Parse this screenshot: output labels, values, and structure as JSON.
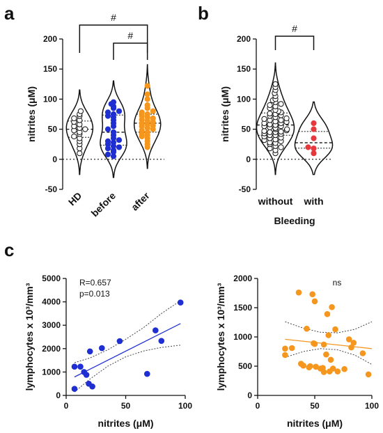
{
  "panels": {
    "a": "a",
    "b": "b",
    "c": "c"
  },
  "colors": {
    "blue": "#1f2fd1",
    "orange": "#f5961e",
    "red": "#e8383d",
    "black": "#111111",
    "white": "#ffffff"
  },
  "chart_data": [
    {
      "id": "a",
      "type": "violin",
      "ylabel": "nitrites (μM)",
      "ylim": [
        -50,
        200
      ],
      "yticks": [
        -50,
        0,
        50,
        100,
        150,
        200
      ],
      "zero_line": "dotted",
      "categories": [
        "HD",
        "before",
        "after"
      ],
      "series": [
        {
          "name": "HD",
          "fill": "open",
          "color": "#111111",
          "values": [
            10,
            18,
            25,
            30,
            35,
            38,
            42,
            45,
            48,
            50,
            52,
            55,
            58,
            62,
            65,
            68,
            72,
            75,
            80
          ]
        },
        {
          "name": "before",
          "fill": "filled",
          "color": "#1f2fd1",
          "values": [
            5,
            8,
            12,
            15,
            18,
            20,
            22,
            25,
            28,
            30,
            32,
            35,
            40,
            45,
            50,
            55,
            60,
            65,
            70,
            72,
            75,
            78,
            80,
            85,
            88,
            92,
            95
          ]
        },
        {
          "name": "after",
          "fill": "filled",
          "color": "#f5961e",
          "values": [
            20,
            25,
            30,
            35,
            38,
            40,
            42,
            45,
            48,
            50,
            52,
            55,
            56,
            58,
            60,
            62,
            64,
            66,
            68,
            70,
            72,
            75,
            78,
            80,
            85,
            90,
            100,
            108,
            122
          ]
        }
      ],
      "comparisons": [
        {
          "from": "HD",
          "to": "after",
          "label": "#",
          "level": 1
        },
        {
          "from": "before",
          "to": "after",
          "label": "#",
          "level": 2
        }
      ]
    },
    {
      "id": "b",
      "type": "violin",
      "ylabel": "nitrites (μM)",
      "xlabel": "Bleeding",
      "ylim": [
        -50,
        200
      ],
      "yticks": [
        -50,
        0,
        50,
        100,
        150,
        200
      ],
      "zero_line": "dotted",
      "categories": [
        "without",
        "with"
      ],
      "series": [
        {
          "name": "without",
          "fill": "open",
          "color": "#111111",
          "values": [
            10,
            15,
            18,
            20,
            22,
            25,
            27,
            28,
            30,
            32,
            33,
            35,
            36,
            38,
            40,
            40,
            42,
            43,
            45,
            45,
            46,
            47,
            48,
            50,
            50,
            52,
            53,
            55,
            55,
            57,
            58,
            60,
            60,
            62,
            63,
            65,
            65,
            67,
            68,
            70,
            72,
            73,
            75,
            76,
            78,
            80,
            82,
            85,
            88,
            90,
            92,
            95,
            98,
            100,
            105,
            110,
            115,
            120,
            125
          ]
        },
        {
          "name": "with",
          "fill": "filled",
          "color": "#e8383d",
          "values": [
            10,
            18,
            20,
            35,
            50,
            60
          ]
        }
      ],
      "comparisons": [
        {
          "from": "without",
          "to": "with",
          "label": "#",
          "level": 1
        }
      ]
    },
    {
      "id": "c-left",
      "type": "scatter",
      "xlabel": "nitrites (μM)",
      "ylabel": "lymphocytes x 10³/mm³",
      "xlim": [
        0,
        100
      ],
      "ylim": [
        0,
        5000
      ],
      "xticks": [
        0,
        50,
        100
      ],
      "yticks": [
        0,
        1000,
        2000,
        3000,
        4000,
        5000
      ],
      "color": "#1f2fd1",
      "annotations": [
        "R=0.657",
        "p=0.013"
      ],
      "points": [
        [
          7,
          1230
        ],
        [
          7,
          280
        ],
        [
          12,
          1230
        ],
        [
          15,
          1000
        ],
        [
          17,
          880
        ],
        [
          19,
          500
        ],
        [
          20,
          1880
        ],
        [
          22,
          380
        ],
        [
          30,
          2020
        ],
        [
          45,
          2320
        ],
        [
          68,
          920
        ],
        [
          75,
          2780
        ],
        [
          80,
          2330
        ],
        [
          96,
          3970
        ]
      ],
      "fit": {
        "x": [
          7,
          96
        ],
        "y": [
          790,
          3070
        ]
      },
      "ci_upper": {
        "x": [
          7,
          20,
          35,
          50,
          65,
          80,
          96
        ],
        "y": [
          1400,
          1600,
          1950,
          2400,
          2900,
          3500,
          4050
        ]
      },
      "ci_lower": {
        "x": [
          7,
          20,
          35,
          50,
          65,
          80,
          96
        ],
        "y": [
          150,
          700,
          1250,
          1650,
          1900,
          2050,
          2150
        ]
      }
    },
    {
      "id": "c-right",
      "type": "scatter",
      "xlabel": "nitrites (μM)",
      "ylabel": "lymphocytes x 10³/mm³",
      "xlim": [
        0,
        100
      ],
      "ylim": [
        0,
        2000
      ],
      "xticks": [
        0,
        50,
        100
      ],
      "yticks": [
        0,
        500,
        1000,
        1500,
        2000
      ],
      "color": "#f5961e",
      "annotations": [
        "ns"
      ],
      "points": [
        [
          24,
          800
        ],
        [
          24,
          690
        ],
        [
          30,
          810
        ],
        [
          36,
          1760
        ],
        [
          38,
          540
        ],
        [
          40,
          510
        ],
        [
          43,
          1140
        ],
        [
          45,
          480
        ],
        [
          46,
          500
        ],
        [
          48,
          1730
        ],
        [
          49,
          890
        ],
        [
          50,
          1610
        ],
        [
          50,
          880
        ],
        [
          51,
          490
        ],
        [
          55,
          460
        ],
        [
          57,
          470
        ],
        [
          58,
          870
        ],
        [
          60,
          700
        ],
        [
          62,
          1030
        ],
        [
          63,
          410
        ],
        [
          64,
          610
        ],
        [
          65,
          1510
        ],
        [
          66,
          460
        ],
        [
          68,
          1130
        ],
        [
          70,
          410
        ],
        [
          76,
          450
        ],
        [
          80,
          960
        ],
        [
          82,
          820
        ],
        [
          84,
          900
        ],
        [
          92,
          720
        ],
        [
          97,
          360
        ],
        [
          58,
          400
        ],
        [
          61,
          1390
        ]
      ],
      "fit": {
        "x": [
          24,
          100
        ],
        "y": [
          960,
          800
        ]
      },
      "ci_upper": {
        "x": [
          24,
          40,
          55,
          70,
          85,
          100
        ],
        "y": [
          1260,
          1150,
          1080,
          1070,
          1130,
          1260
        ]
      },
      "ci_lower": {
        "x": [
          24,
          40,
          55,
          70,
          85,
          100
        ],
        "y": [
          650,
          750,
          800,
          780,
          690,
          530
        ]
      }
    }
  ]
}
